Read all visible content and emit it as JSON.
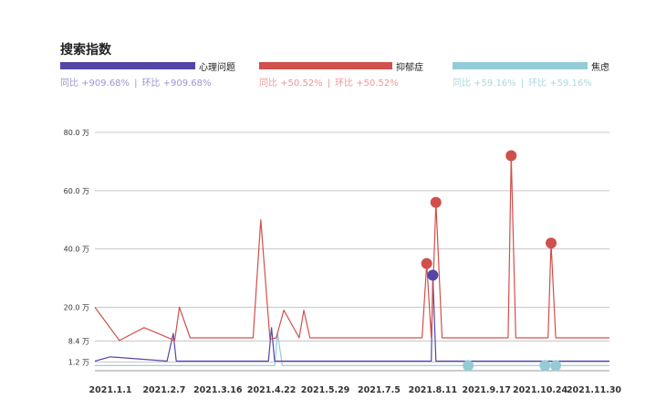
{
  "title": "搜索指数",
  "legend": [
    {
      "name": "心理问题",
      "color": "#5346a6",
      "stat_color": "#9d94d4",
      "yoy": "同比 +909.68%",
      "mom": "环比 +909.68%"
    },
    {
      "name": "抑郁症",
      "color": "#d0504b",
      "stat_color": "#e89a96",
      "yoy": "同比 +50.52%",
      "mom": "环比 +50.52%"
    },
    {
      "name": "焦虑",
      "color": "#93cbd6",
      "stat_color": "#aed7df",
      "yoy": "同比 +59.16%",
      "mom": "环比 +59.16%"
    }
  ],
  "chart_data": {
    "type": "line",
    "title": "搜索指数",
    "xlabel": "",
    "ylabel": "",
    "ylim": [
      0,
      84
    ],
    "y_ticks": [
      {
        "value": 1.2,
        "label": "1.2 万"
      },
      {
        "value": 8.4,
        "label": "8.4 万"
      },
      {
        "value": 20,
        "label": "20.0 万"
      },
      {
        "value": 40,
        "label": "40.0 万"
      },
      {
        "value": 60,
        "label": "60.0 万"
      },
      {
        "value": 80,
        "label": "80.0 万"
      }
    ],
    "x_ticks": [
      "2021.1.1",
      "2021.2.7",
      "2021.3.16",
      "2021.4.22",
      "2021.5.29",
      "2021.7.5",
      "2021.8.11",
      "2021.9.17",
      "2021.10.24",
      "2021.11.30"
    ],
    "x_range": [
      0,
      335
    ],
    "grid": true,
    "series": [
      {
        "name": "心理问题",
        "color": "#5346a6",
        "x": [
          0,
          10,
          47,
          51,
          53,
          113,
          115,
          117,
          219,
          220,
          222,
          335
        ],
        "y": [
          1.5,
          3,
          1.5,
          11,
          1.5,
          1.5,
          13,
          1.5,
          1.5,
          31,
          1.5,
          1.5
        ],
        "markers": [
          {
            "x": 220,
            "y": 31
          }
        ]
      },
      {
        "name": "抑郁症",
        "color": "#d0504b",
        "x": [
          0,
          16,
          32,
          52,
          55,
          62,
          103,
          108,
          114,
          118,
          123,
          133,
          136,
          140,
          145,
          213,
          216,
          219,
          222,
          226,
          269,
          271,
          274,
          295,
          297,
          300,
          335
        ],
        "y": [
          20,
          8.6,
          13,
          8.6,
          20,
          9.5,
          9.5,
          50,
          9,
          9.5,
          19,
          9.5,
          19,
          9.5,
          9.5,
          9.5,
          35,
          9.5,
          56,
          9.5,
          9.5,
          72,
          9.5,
          9.5,
          42,
          9.5,
          9.5
        ],
        "markers": [
          {
            "x": 216,
            "y": 35
          },
          {
            "x": 222,
            "y": 56
          },
          {
            "x": 271,
            "y": 72
          },
          {
            "x": 297,
            "y": 42
          }
        ]
      },
      {
        "name": "焦虑",
        "color": "#93cbd6",
        "x": [
          0,
          117,
          119,
          122,
          335
        ],
        "y": [
          0,
          0,
          11,
          0,
          0
        ],
        "markers": [
          {
            "x": 243,
            "y": 0
          },
          {
            "x": 293,
            "y": 0
          },
          {
            "x": 300,
            "y": 0
          }
        ]
      }
    ]
  }
}
